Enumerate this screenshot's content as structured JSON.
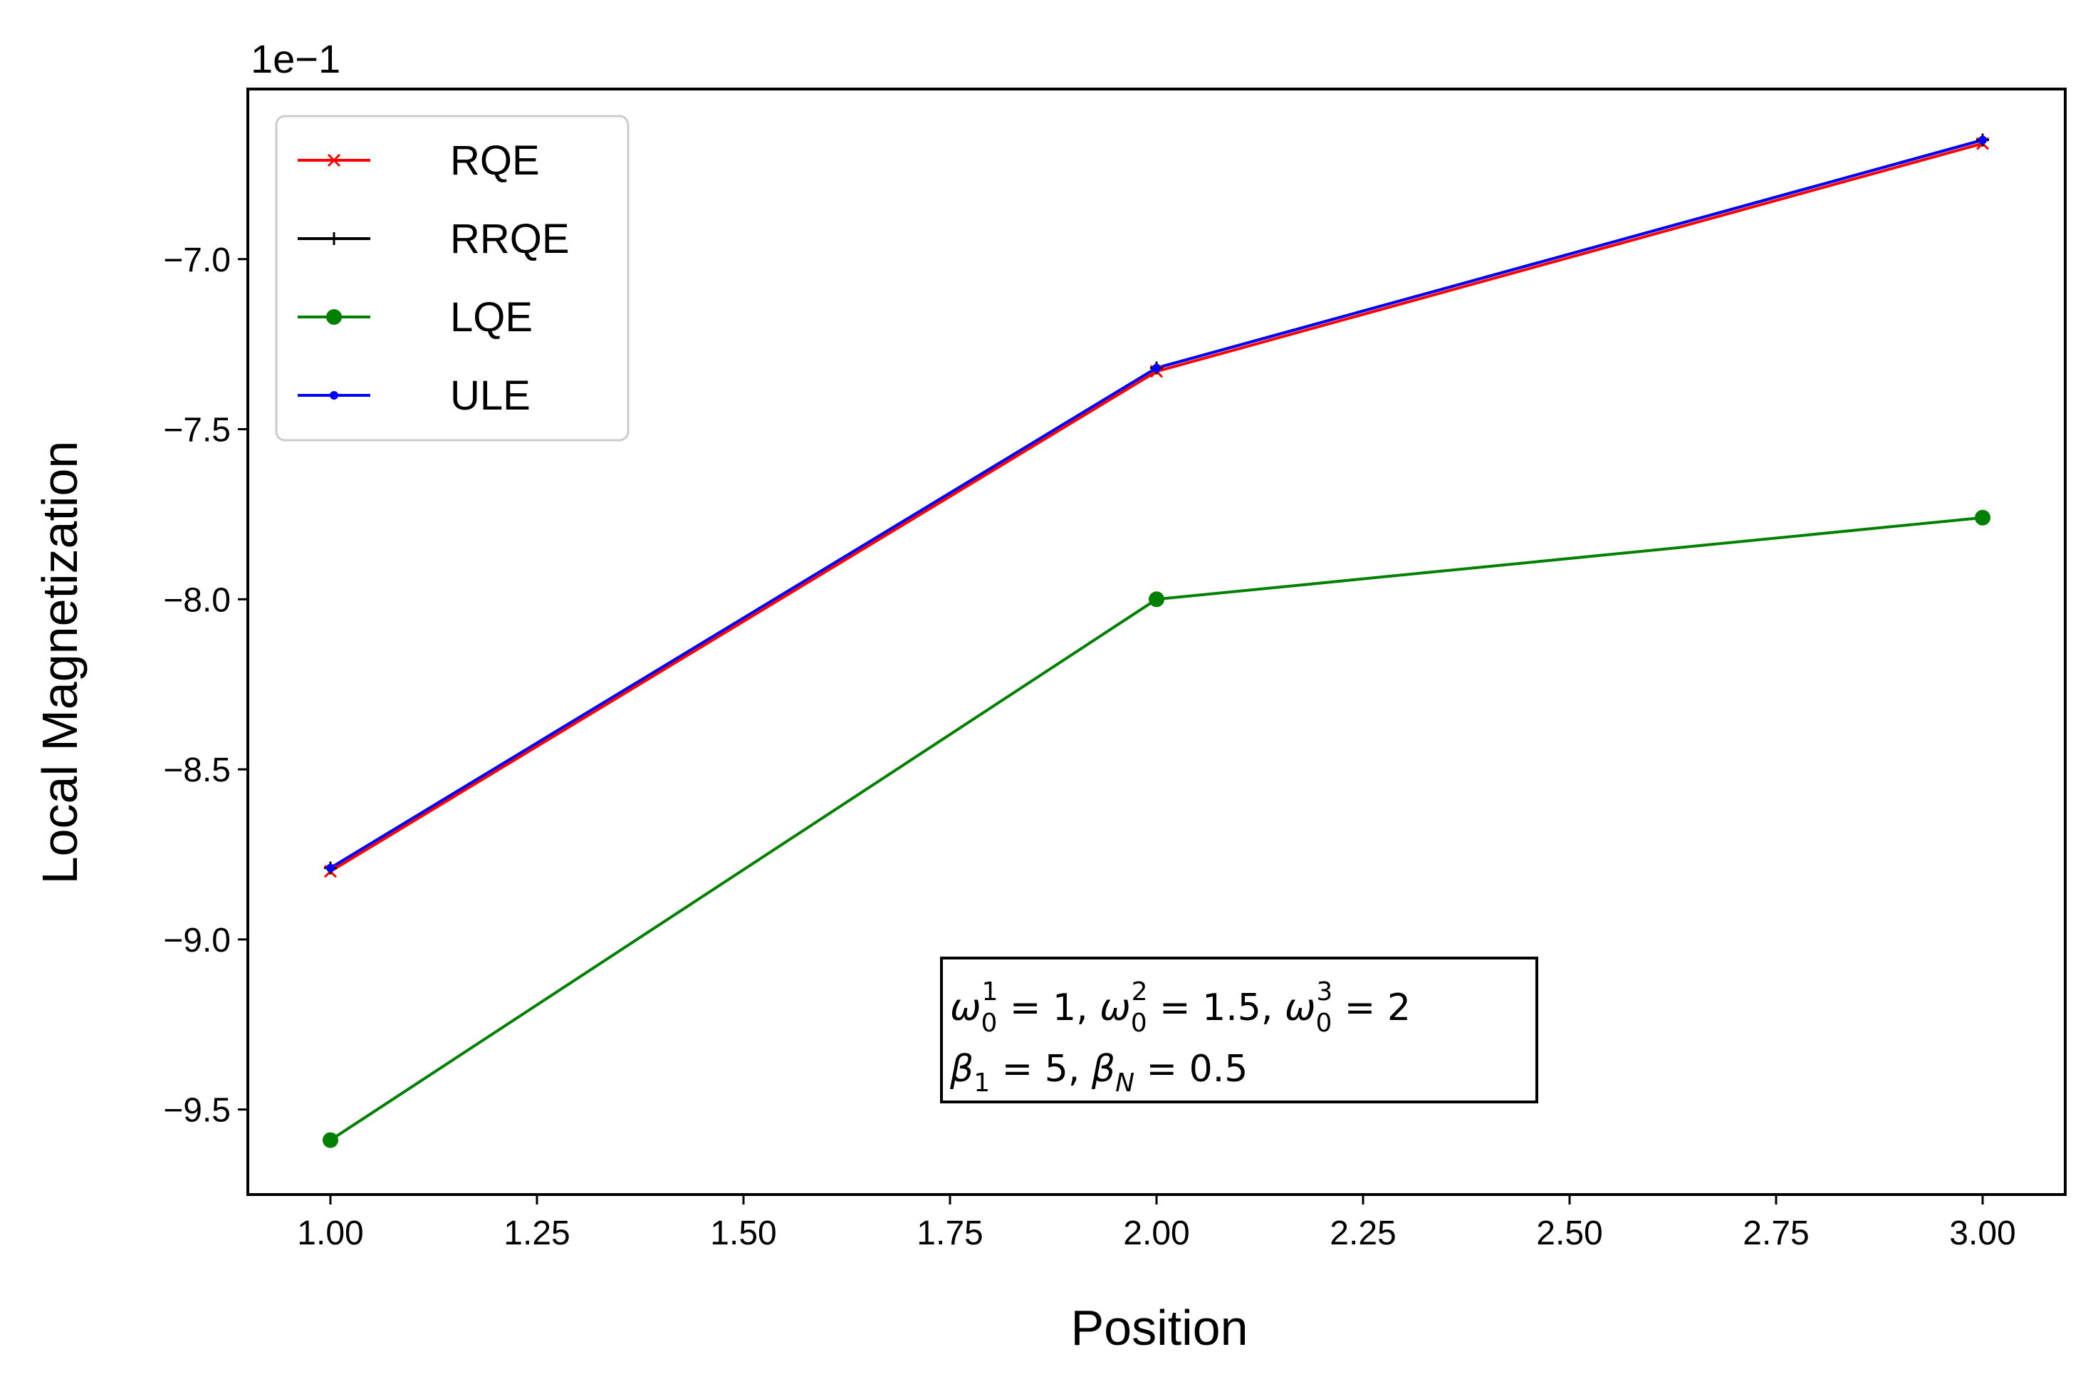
{
  "chart_data": {
    "type": "line",
    "title": "",
    "xlabel": "Position",
    "ylabel": "Local Magnetization",
    "y_offset_label": "1e−1",
    "xlim": [
      0.9,
      3.1
    ],
    "ylim": [
      -9.75,
      -6.5
    ],
    "x_ticks": [
      1.0,
      1.25,
      1.5,
      1.75,
      2.0,
      2.25,
      2.5,
      2.75,
      3.0
    ],
    "x_tick_labels": [
      "1.00",
      "1.25",
      "1.50",
      "1.75",
      "2.00",
      "2.25",
      "2.50",
      "2.75",
      "3.00"
    ],
    "y_ticks": [
      -7.0,
      -7.5,
      -8.0,
      -8.5,
      -9.0,
      -9.5
    ],
    "y_tick_labels": [
      "−7.0",
      "−7.5",
      "−8.0",
      "−8.5",
      "−9.0",
      "−9.5"
    ],
    "grid": false,
    "legend_position": "top-left",
    "x": [
      1,
      2,
      3
    ],
    "series": [
      {
        "name": "RQE",
        "values": [
          -8.8,
          -7.33,
          -6.66
        ],
        "color": "#ff0000",
        "marker": "x"
      },
      {
        "name": "RRQE",
        "values": [
          -8.79,
          -7.32,
          -6.65
        ],
        "color": "#000000",
        "marker": "plus"
      },
      {
        "name": "LQE",
        "values": [
          -9.59,
          -8.0,
          -7.76
        ],
        "color": "#008000",
        "marker": "circle"
      },
      {
        "name": "ULE",
        "values": [
          -8.79,
          -7.32,
          -6.65
        ],
        "color": "#0000ff",
        "marker": "dot"
      }
    ],
    "annotation": {
      "omega_var": "ω",
      "beta_var": "β",
      "sub0": "0",
      "sup1": "1",
      "sup2": "2",
      "sup3": "3",
      "sub1": "1",
      "subN": "N",
      "val1": " = 1, ",
      "val2": " = 1.5, ",
      "val3": " = 2",
      "val4": " = 5, ",
      "val5": " = 0.5"
    }
  }
}
